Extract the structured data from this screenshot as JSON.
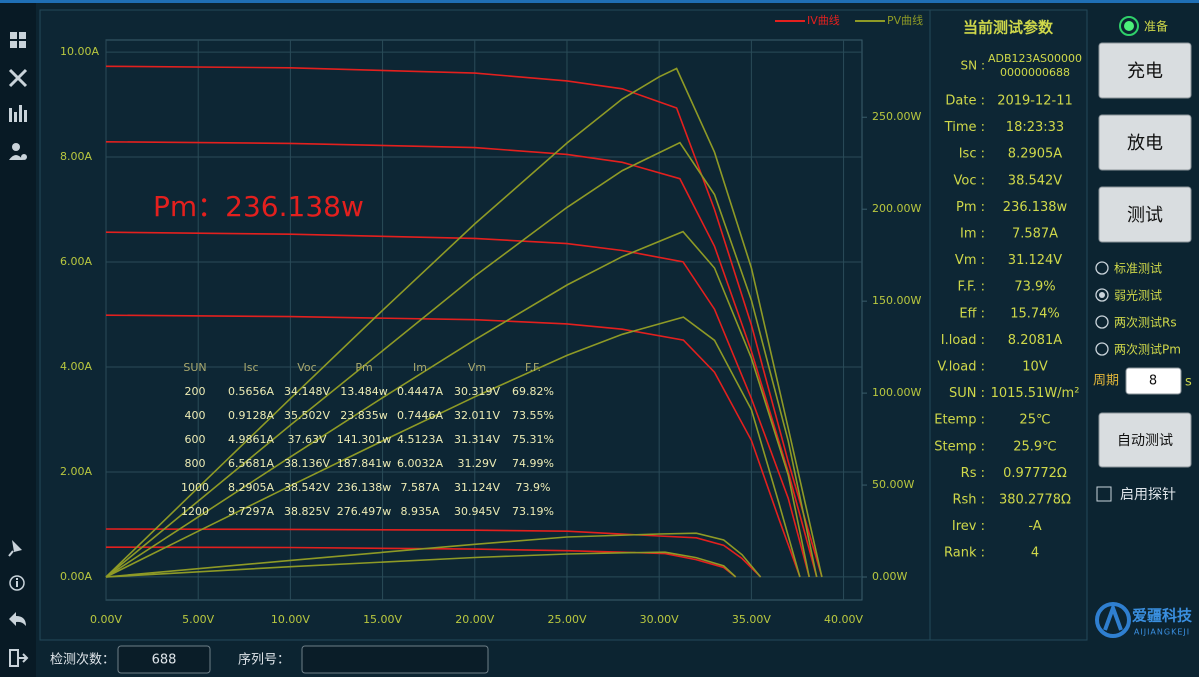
{
  "chart_data": {
    "type": "line",
    "legend": "top-right",
    "grid": true,
    "xlim": [
      0,
      41
    ],
    "xticks": [
      {
        "value": 0,
        "label": "0.00V"
      },
      {
        "value": 5,
        "label": "5.00V"
      },
      {
        "value": 10,
        "label": "10.00V"
      },
      {
        "value": 15,
        "label": "15.00V"
      },
      {
        "value": 20,
        "label": "20.00V"
      },
      {
        "value": 25,
        "label": "25.00V"
      },
      {
        "value": 30,
        "label": "30.00V"
      },
      {
        "value": 35,
        "label": "35.00V"
      },
      {
        "value": 40,
        "label": "40.00V"
      }
    ],
    "ylim": [
      -0.44,
      10.23
    ],
    "yticks": [
      {
        "value": 0,
        "label": "0.00A"
      },
      {
        "value": 2,
        "label": "2.00A"
      },
      {
        "value": 4,
        "label": "4.00A"
      },
      {
        "value": 6,
        "label": "6.00A"
      },
      {
        "value": 8,
        "label": "8.00A"
      },
      {
        "value": 10,
        "label": "10.00A"
      }
    ],
    "y2lim": [
      -12.5,
      292
    ],
    "y2ticks": [
      {
        "value": 0,
        "label": "0.00W"
      },
      {
        "value": 50,
        "label": "50.00W"
      },
      {
        "value": 100,
        "label": "100.00W"
      },
      {
        "value": 150,
        "label": "150.00W"
      },
      {
        "value": 200,
        "label": "200.00W"
      },
      {
        "value": 250,
        "label": "250.00W"
      }
    ],
    "annotation": "Pm：236.138w",
    "series": [
      {
        "name": "IV曲线",
        "color": "#e3201e",
        "axis": "y",
        "curves": [
          {
            "x": [
              0,
              10,
              20,
              25,
              28,
              30,
              30.945,
              33,
              35,
              37,
              38.825
            ],
            "values": [
              9.7297,
              9.7,
              9.6,
              9.45,
              9.3,
              9.05,
              8.935,
              7.0,
              4.8,
              2.2,
              0
            ]
          },
          {
            "x": [
              0,
              10,
              20,
              25,
              28,
              31.124,
              33,
              35,
              37,
              38.542
            ],
            "values": [
              8.2905,
              8.26,
              8.18,
              8.05,
              7.9,
              7.587,
              6.3,
              4.3,
              2.0,
              0
            ]
          },
          {
            "x": [
              0,
              10,
              20,
              25,
              28,
              31.29,
              33,
              35,
              37,
              38.136
            ],
            "values": [
              6.5681,
              6.53,
              6.45,
              6.35,
              6.22,
              6.0032,
              5.1,
              3.4,
              1.5,
              0
            ]
          },
          {
            "x": [
              0,
              10,
              20,
              25,
              28,
              31.314,
              33,
              35,
              36.5,
              37.63
            ],
            "values": [
              4.9861,
              4.96,
              4.9,
              4.82,
              4.72,
              4.5123,
              3.9,
              2.6,
              1.1,
              0
            ]
          },
          {
            "x": [
              0,
              10,
              20,
              25,
              30,
              32.011,
              33.5,
              34.5,
              35.502
            ],
            "values": [
              0.9128,
              0.905,
              0.89,
              0.87,
              0.78,
              0.7446,
              0.6,
              0.35,
              0
            ]
          },
          {
            "x": [
              0,
              10,
              20,
              25,
              28,
              30.319,
              32,
              33.5,
              34.148
            ],
            "values": [
              0.5656,
              0.56,
              0.53,
              0.5,
              0.47,
              0.4447,
              0.33,
              0.18,
              0
            ]
          }
        ]
      },
      {
        "name": "PV曲线",
        "color": "#8e9a26",
        "axis": "y2",
        "curves": [
          {
            "x": [
              0,
              5,
              10,
              15,
              20,
              25,
              28,
              30,
              30.945,
              33,
              35,
              37,
              38.825
            ],
            "values": [
              0,
              48.6,
              97,
              145,
              192,
              236,
              260,
              272,
              276.497,
              231,
              168,
              81,
              0
            ]
          },
          {
            "x": [
              0,
              5,
              10,
              15,
              20,
              25,
              28,
              31.124,
              33,
              35,
              37,
              38.542
            ],
            "values": [
              0,
              41.3,
              82.6,
              123,
              163.6,
              201,
              221,
              236.138,
              208,
              150.5,
              74,
              0
            ]
          },
          {
            "x": [
              0,
              5,
              10,
              15,
              20,
              25,
              28,
              31.29,
              33,
              35,
              37,
              38.136
            ],
            "values": [
              0,
              32.7,
              65.3,
              97.5,
              129,
              158.8,
              174.2,
              187.841,
              168,
              119,
              55.5,
              0
            ]
          },
          {
            "x": [
              0,
              5,
              10,
              15,
              20,
              25,
              28,
              31.314,
              33,
              35,
              36.5,
              37.63
            ],
            "values": [
              0,
              24.9,
              49.6,
              74,
              98,
              120.5,
              132,
              141.301,
              128.7,
              91,
              40,
              0
            ]
          },
          {
            "x": [
              0,
              10,
              20,
              25,
              30,
              32.011,
              33.5,
              34.5,
              35.502
            ],
            "values": [
              0,
              9.05,
              17.8,
              21.75,
              23.4,
              23.835,
              20.1,
              12.1,
              0
            ]
          },
          {
            "x": [
              0,
              10,
              20,
              25,
              28,
              30.319,
              32,
              33.5,
              34.148
            ],
            "values": [
              0,
              5.6,
              10.6,
              12.5,
              13.16,
              13.484,
              10.56,
              6.03,
              0
            ]
          }
        ]
      }
    ],
    "table": {
      "header": [
        "SUN",
        "Isc",
        "Voc",
        "Pm",
        "Im",
        "Vm",
        "F.F."
      ],
      "rows": [
        [
          "200",
          "0.5656A",
          "34.148V",
          "13.484w",
          "0.4447A",
          "30.319V",
          "69.82%"
        ],
        [
          "400",
          "0.9128A",
          "35.502V",
          "23.835w",
          "0.7446A",
          "32.011V",
          "73.55%"
        ],
        [
          "600",
          "4.9861A",
          "37.63V",
          "141.301w",
          "4.5123A",
          "31.314V",
          "75.31%"
        ],
        [
          "800",
          "6.5681A",
          "38.136V",
          "187.841w",
          "6.0032A",
          "31.29V",
          "74.99%"
        ],
        [
          "1000",
          "8.2905A",
          "38.542V",
          "236.138w",
          "7.587A",
          "31.124V",
          "73.9%"
        ],
        [
          "1200",
          "9.7297A",
          "38.825V",
          "276.497w",
          "8.935A",
          "30.945V",
          "73.19%"
        ]
      ]
    }
  },
  "params": {
    "title": "当前测试参数",
    "sn": {
      "label": "SN :",
      "value": [
        "ADB123AS00000",
        "0000000688"
      ]
    },
    "rows": [
      [
        "Date :",
        "2019-12-11"
      ],
      [
        "Time :",
        "18:23:33"
      ],
      [
        "Isc :",
        "8.2905A"
      ],
      [
        "Voc :",
        "38.542V"
      ],
      [
        "Pm :",
        "236.138w"
      ],
      [
        "Im :",
        "7.587A"
      ],
      [
        "Vm :",
        "31.124V"
      ],
      [
        "F.F. :",
        "73.9%"
      ],
      [
        "Eff :",
        "15.74%"
      ],
      [
        "I.load :",
        "8.2081A"
      ],
      [
        "V.load :",
        "10V"
      ],
      [
        "SUN :",
        "1015.51W/m²"
      ],
      [
        "Etemp :",
        "25℃"
      ],
      [
        "Stemp :",
        "25.9℃"
      ],
      [
        "Rs :",
        "0.97772Ω"
      ],
      [
        "Rsh :",
        "380.2778Ω"
      ],
      [
        "Irev :",
        "-A"
      ],
      [
        "Rank :",
        "4"
      ]
    ]
  },
  "status": "准备",
  "buttons": [
    "充电",
    "放电",
    "测试"
  ],
  "modes": [
    "标准测试",
    "弱光测试",
    "两次测试Rs",
    "两次测试Pm"
  ],
  "selected_mode": 1,
  "period": {
    "label": "周期",
    "value": "8",
    "unit": "s"
  },
  "auto_button": "自动测试",
  "probe": "启用探针",
  "logo": {
    "name": "爱疆科技",
    "sub": "AIJIANGKEJI"
  },
  "footer": {
    "count_label": "检测次数：",
    "count": "688",
    "serial_label": "序列号："
  }
}
